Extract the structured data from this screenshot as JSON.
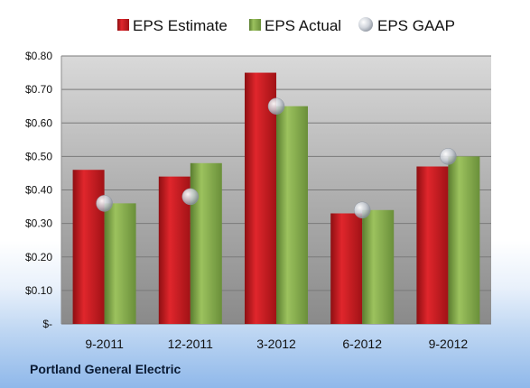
{
  "company": "Portland General Electric",
  "legend": [
    "EPS Estimate",
    "EPS Actual",
    "EPS GAAP"
  ],
  "colors": {
    "estimate": "#c8161d",
    "actual": "#7ea64a",
    "gaap": "#c8ccd2"
  },
  "chart_data": {
    "type": "bar",
    "categories": [
      "9-2011",
      "12-2011",
      "3-2012",
      "6-2012",
      "9-2012"
    ],
    "series": [
      {
        "name": "EPS Estimate",
        "values": [
          0.46,
          0.44,
          0.75,
          0.33,
          0.47
        ]
      },
      {
        "name": "EPS Actual",
        "values": [
          0.36,
          0.48,
          0.65,
          0.34,
          0.5
        ]
      },
      {
        "name": "EPS GAAP",
        "values": [
          0.36,
          0.38,
          0.65,
          0.34,
          0.5
        ]
      }
    ],
    "ylim": [
      0,
      0.8
    ],
    "yticks": [
      0,
      0.1,
      0.2,
      0.3,
      0.4,
      0.5,
      0.6,
      0.7,
      0.8
    ],
    "ytick_labels": [
      "$-",
      "$0.10",
      "$0.20",
      "$0.30",
      "$0.40",
      "$0.50",
      "$0.60",
      "$0.70",
      "$0.80"
    ],
    "grid": true,
    "legend_position": "top"
  }
}
